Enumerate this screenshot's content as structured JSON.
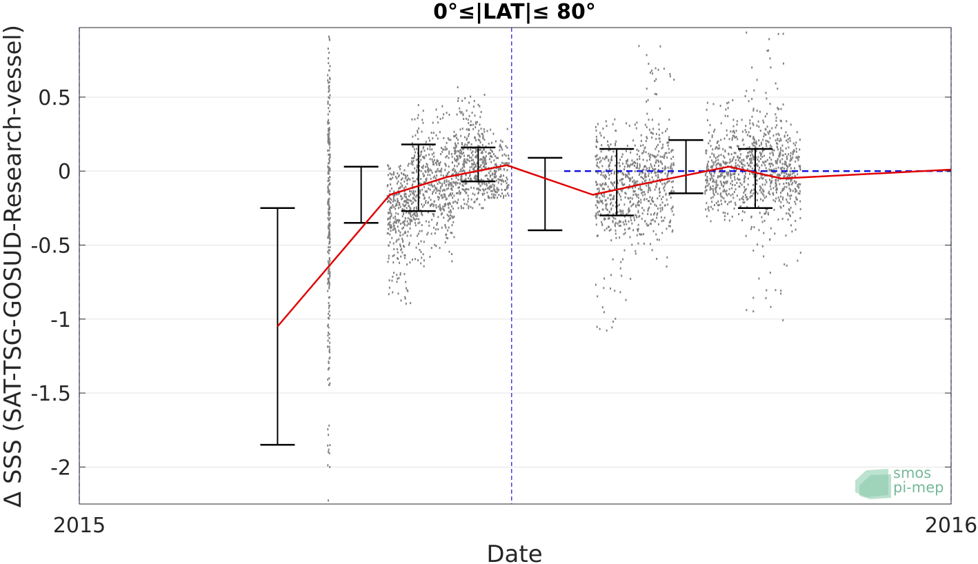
{
  "chart_data": {
    "type": "scatter",
    "title": "0°≤|LAT|≤ 80°",
    "xlabel": "Date",
    "ylabel": "Δ SSS (SAT-TSG-GOSUD-Research-vessel)",
    "x_axis": {
      "type": "date",
      "range": [
        "2015-01-01",
        "2016-01-01"
      ],
      "tick_labels": [
        "2015",
        "2016"
      ]
    },
    "y_axis": {
      "range": [
        -2.25,
        0.97
      ],
      "ticks": [
        0.5,
        0,
        -0.5,
        -1,
        -1.5,
        -2
      ],
      "tick_labels": [
        "0.5",
        "0",
        "-0.5",
        "-1",
        "-1.5",
        "-2"
      ]
    },
    "grid": "horizontal",
    "reference_lines": [
      {
        "kind": "horizontal",
        "y": 0,
        "x_start": "2015-07-23",
        "x_end": "2016-01-01",
        "style": "dashed",
        "color": "#1010dd"
      },
      {
        "kind": "vertical",
        "x": "2015-01-01",
        "style": "dashed",
        "color": "#1010dd"
      },
      {
        "kind": "vertical",
        "x": "2015-07-01",
        "style": "dashed",
        "color": "#1010dd"
      },
      {
        "kind": "vertical",
        "x": "2016-01-01",
        "style": "dashed",
        "color": "#1010dd"
      }
    ],
    "mean_series": {
      "color": "#e00000",
      "x": [
        "2015-03-25",
        "2015-05-11",
        "2015-06-04",
        "2015-06-29",
        "2015-08-04",
        "2015-08-27",
        "2015-09-30",
        "2015-10-22",
        "2016-01-01"
      ],
      "y": [
        -1.05,
        -0.16,
        -0.04,
        0.04,
        -0.16,
        -0.08,
        0.03,
        -0.05,
        0.01
      ]
    },
    "error_bars": {
      "color": "#000000",
      "x": [
        "2015-03-25",
        "2015-04-29",
        "2015-05-23",
        "2015-06-17",
        "2015-07-15",
        "2015-08-14",
        "2015-09-12",
        "2015-10-11"
      ],
      "low": [
        -1.85,
        -0.35,
        -0.27,
        -0.07,
        -0.4,
        -0.3,
        -0.15,
        -0.25
      ],
      "high": [
        -0.25,
        0.03,
        0.18,
        0.16,
        0.09,
        0.15,
        0.21,
        0.15
      ]
    },
    "scatter_series": {
      "color": "#808080",
      "segments": [
        {
          "x_start": "2015-04-15",
          "x_end": "2015-04-16",
          "y_min": -2.25,
          "y_max": 0.95,
          "center": -0.2,
          "spread": 0.6,
          "points": 260
        },
        {
          "x_start": "2015-05-10",
          "x_end": "2015-05-20",
          "y_min": -0.9,
          "y_max": 0.05,
          "center": -0.28,
          "spread": 0.2,
          "points": 300
        },
        {
          "x_start": "2015-05-20",
          "x_end": "2015-06-07",
          "y_min": -0.65,
          "y_max": 0.45,
          "center": -0.1,
          "spread": 0.22,
          "points": 480
        },
        {
          "x_start": "2015-06-07",
          "x_end": "2015-06-20",
          "y_min": -0.25,
          "y_max": 0.58,
          "center": 0.06,
          "spread": 0.18,
          "points": 380
        },
        {
          "x_start": "2015-06-20",
          "x_end": "2015-06-30",
          "y_min": -0.18,
          "y_max": 0.3,
          "center": -0.02,
          "spread": 0.12,
          "points": 180
        },
        {
          "x_start": "2015-08-05",
          "x_end": "2015-08-23",
          "y_min": -1.08,
          "y_max": 0.35,
          "center": -0.12,
          "spread": 0.22,
          "points": 420
        },
        {
          "x_start": "2015-08-23",
          "x_end": "2015-09-07",
          "y_min": -0.65,
          "y_max": 0.88,
          "center": -0.05,
          "spread": 0.22,
          "points": 360
        },
        {
          "x_start": "2015-09-20",
          "x_end": "2015-10-07",
          "y_min": -0.36,
          "y_max": 0.52,
          "center": -0.02,
          "spread": 0.16,
          "points": 380
        },
        {
          "x_start": "2015-10-07",
          "x_end": "2015-10-23",
          "y_min": -1.05,
          "y_max": 0.95,
          "center": 0.05,
          "spread": 0.22,
          "points": 420
        },
        {
          "x_start": "2015-10-23",
          "x_end": "2015-10-30",
          "y_min": -0.68,
          "y_max": 0.36,
          "center": -0.02,
          "spread": 0.18,
          "points": 160
        }
      ]
    }
  },
  "logo": {
    "line1": "smos",
    "line2": "pi-mep"
  }
}
